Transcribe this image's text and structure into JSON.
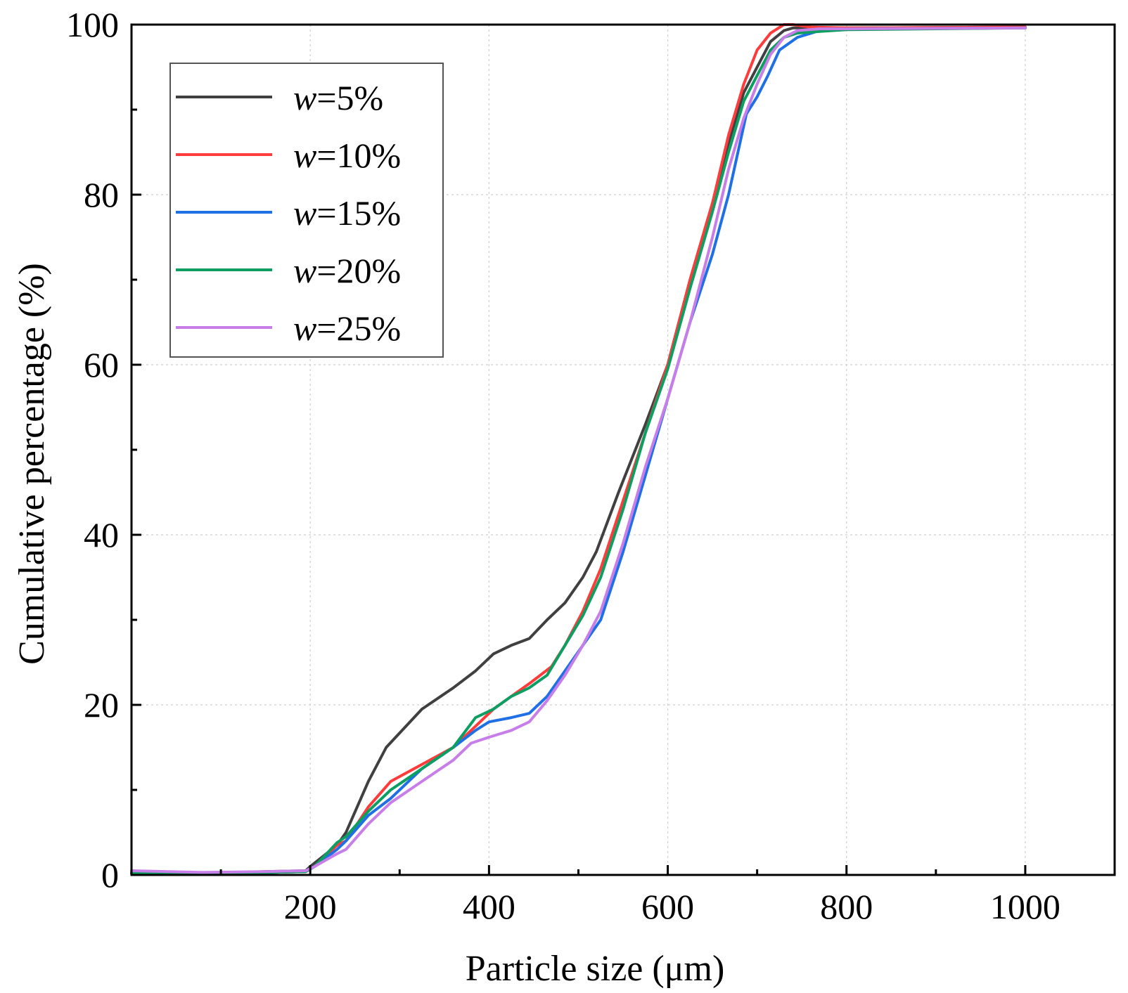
{
  "chart_data": {
    "type": "line",
    "title": "",
    "xlabel": "Particle size (μm)",
    "ylabel": "Cumulative percentage (%)",
    "xlim": [
      0,
      1100
    ],
    "ylim": [
      0,
      100
    ],
    "xticks": [
      200,
      400,
      600,
      800,
      1000
    ],
    "yticks": [
      0,
      20,
      40,
      60,
      80,
      100
    ],
    "grid": true,
    "legend_position": "top-left",
    "legend_prefix": "w",
    "series": [
      {
        "name": "=5%",
        "color": "#404040",
        "x": [
          0,
          80,
          150,
          195,
          200,
          230,
          240,
          265,
          285,
          325,
          360,
          385,
          405,
          425,
          445,
          465,
          485,
          505,
          520,
          545,
          575,
          600,
          625,
          650,
          668,
          685,
          700,
          715,
          730,
          740,
          760,
          800,
          1000
        ],
        "y": [
          0.3,
          0.2,
          0.4,
          0.5,
          1.0,
          3.5,
          5.0,
          11.0,
          15.0,
          19.5,
          22.0,
          24.0,
          26.0,
          27.0,
          27.8,
          30.0,
          32.0,
          35.0,
          38.0,
          45.0,
          53.0,
          60.0,
          70.0,
          79.0,
          86.0,
          92.0,
          95.0,
          98.0,
          99.3,
          99.6,
          99.6,
          99.6,
          99.7
        ]
      },
      {
        "name": "=10%",
        "color": "#ff3b3b",
        "x": [
          0,
          80,
          150,
          195,
          205,
          230,
          240,
          265,
          290,
          325,
          360,
          385,
          405,
          425,
          445,
          470,
          485,
          505,
          525,
          550,
          575,
          600,
          625,
          650,
          668,
          685,
          700,
          715,
          730,
          740,
          760,
          800,
          1000
        ],
        "y": [
          0.2,
          0.1,
          0.3,
          0.4,
          1.0,
          3.5,
          4.0,
          8.0,
          11.0,
          13.0,
          15.0,
          17.5,
          19.5,
          21.0,
          22.5,
          24.5,
          27.0,
          31.0,
          36.0,
          44.0,
          52.0,
          60.0,
          70.0,
          79.0,
          87.0,
          93.0,
          97.0,
          99.0,
          100.0,
          100.0,
          99.7,
          99.6,
          99.7
        ]
      },
      {
        "name": "=15%",
        "color": "#1f6fe5",
        "x": [
          0,
          80,
          150,
          195,
          205,
          230,
          240,
          265,
          290,
          325,
          360,
          385,
          400,
          425,
          445,
          465,
          485,
          505,
          525,
          550,
          575,
          600,
          625,
          650,
          668,
          688,
          700,
          712,
          725,
          745,
          770,
          800,
          1000
        ],
        "y": [
          0.2,
          0.1,
          0.3,
          0.4,
          1.0,
          3.0,
          4.0,
          7.0,
          9.0,
          12.5,
          15.0,
          17.0,
          18.0,
          18.5,
          19.0,
          21.0,
          24.0,
          27.0,
          30.0,
          38.0,
          47.0,
          56.0,
          65.0,
          73.0,
          80.0,
          89.5,
          91.5,
          94.0,
          97.0,
          98.5,
          99.3,
          99.5,
          99.6
        ]
      },
      {
        "name": "=20%",
        "color": "#0d9e62",
        "x": [
          0,
          80,
          150,
          195,
          205,
          230,
          240,
          265,
          290,
          325,
          360,
          385,
          405,
          425,
          445,
          465,
          485,
          505,
          525,
          550,
          575,
          600,
          625,
          650,
          668,
          685,
          700,
          715,
          730,
          745,
          770,
          800,
          1000
        ],
        "y": [
          0.2,
          0.1,
          0.3,
          0.4,
          1.0,
          3.8,
          4.5,
          7.5,
          10.0,
          12.5,
          15.0,
          18.5,
          19.5,
          21.0,
          22.0,
          23.5,
          27.0,
          30.5,
          35.0,
          43.0,
          52.0,
          59.5,
          69.0,
          78.0,
          85.0,
          91.0,
          94.0,
          97.0,
          98.5,
          99.0,
          99.2,
          99.4,
          99.6
        ]
      },
      {
        "name": "=25%",
        "color": "#c77ee8",
        "x": [
          0,
          80,
          150,
          195,
          205,
          230,
          240,
          265,
          290,
          325,
          360,
          380,
          400,
          425,
          445,
          465,
          485,
          505,
          525,
          550,
          575,
          600,
          625,
          650,
          668,
          685,
          700,
          715,
          730,
          745,
          770,
          800,
          1000
        ],
        "y": [
          0.5,
          0.3,
          0.4,
          0.5,
          1.0,
          2.5,
          3.0,
          6.0,
          8.5,
          11.0,
          13.5,
          15.5,
          16.2,
          17.0,
          18.0,
          20.5,
          23.5,
          27.0,
          31.0,
          39.0,
          48.0,
          56.0,
          65.0,
          75.0,
          83.0,
          89.0,
          93.0,
          96.5,
          98.5,
          99.3,
          99.5,
          99.5,
          99.6
        ]
      }
    ]
  }
}
